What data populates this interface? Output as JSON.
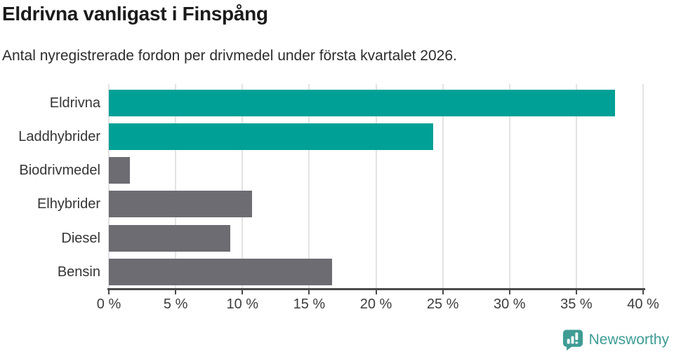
{
  "header": {
    "title": "Eldrivna vanligast i Finspång",
    "subtitle": "Antal nyregistrerade fordon per drivmedel under första kvartalet 2026."
  },
  "chart_data": {
    "type": "bar",
    "orientation": "horizontal",
    "title": "Eldrivna vanligast i Finspång",
    "subtitle": "Antal nyregistrerade fordon per drivmedel under första kvartalet 2026.",
    "categories": [
      "Eldrivna",
      "Laddhybrider",
      "Biodrivmedel",
      "Elhybrider",
      "Diesel",
      "Bensin"
    ],
    "values": [
      37.9,
      24.3,
      1.6,
      10.7,
      9.1,
      16.7
    ],
    "unit": "%",
    "bar_colors": [
      "#00a096",
      "#00a096",
      "#6c6c72",
      "#6c6c72",
      "#6c6c72",
      "#6c6c72"
    ],
    "xlabel": "",
    "ylabel": "",
    "xlim": [
      0,
      40
    ],
    "x_ticks": [
      0,
      5,
      10,
      15,
      20,
      25,
      30,
      35,
      40
    ],
    "x_tick_labels": [
      "0 %",
      "5 %",
      "10 %",
      "15 %",
      "20 %",
      "25 %",
      "30 %",
      "35 %",
      "40 %"
    ],
    "grid": true,
    "legend": false
  },
  "colors": {
    "accent_teal": "#00a096",
    "neutral_gray": "#6c6c72",
    "gridline": "#e3e3e3",
    "axis": "#4a4a4a",
    "logo_teal": "#3e9c95"
  },
  "footer": {
    "brand": "Newsworthy"
  }
}
